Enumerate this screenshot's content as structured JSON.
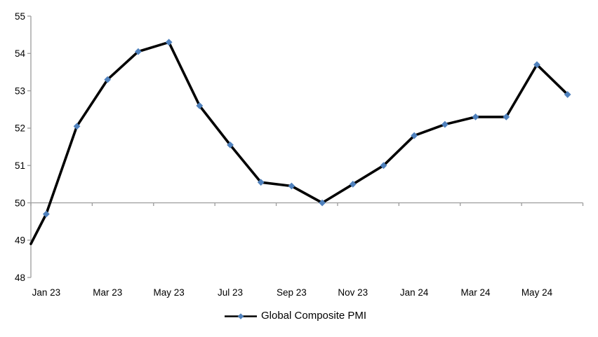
{
  "chart_data": {
    "type": "line",
    "title": "",
    "series": [
      {
        "name": "Global Composite PMI",
        "categories": [
          "Jan 23",
          "Feb 23",
          "Mar 23",
          "Apr 23",
          "May 23",
          "Jun 23",
          "Jul 23",
          "Aug 23",
          "Sep 23",
          "Oct 23",
          "Nov 23",
          "Dec 23",
          "Jan 24",
          "Feb 24",
          "Mar 24",
          "Apr 24",
          "May 24",
          "Jun 24"
        ],
        "values": [
          49.7,
          52.05,
          53.3,
          54.05,
          54.3,
          52.6,
          51.55,
          50.55,
          50.45,
          50.0,
          50.5,
          51.0,
          51.8,
          52.1,
          52.3,
          52.3,
          53.7,
          52.9
        ],
        "line_enters_plot_at_left_edge_value": 48.9,
        "marker": "diamond"
      }
    ],
    "x_tick_labels": [
      "Jan 23",
      "Mar 23",
      "May 23",
      "Jul 23",
      "Sep 23",
      "Nov 23",
      "Jan 24",
      "Mar 24",
      "May 24"
    ],
    "y_tick_labels": [
      "48",
      "49",
      "50",
      "51",
      "52",
      "53",
      "54",
      "55"
    ],
    "y_ticks": [
      48,
      49,
      50,
      51,
      52,
      53,
      54,
      55
    ],
    "ylim": [
      48,
      55
    ],
    "category_axis_crosses_at": 50,
    "grid": "single horizontal axis line at 50 only",
    "legend": {
      "label": "Global Composite PMI",
      "position": "bottom-center",
      "marker": "diamond-on-line"
    },
    "colors": {
      "line": "#000000",
      "marker": "#4F81BD",
      "axis": "#9C9C9C",
      "label_text": "#000000",
      "background": "#FFFFFF"
    }
  }
}
